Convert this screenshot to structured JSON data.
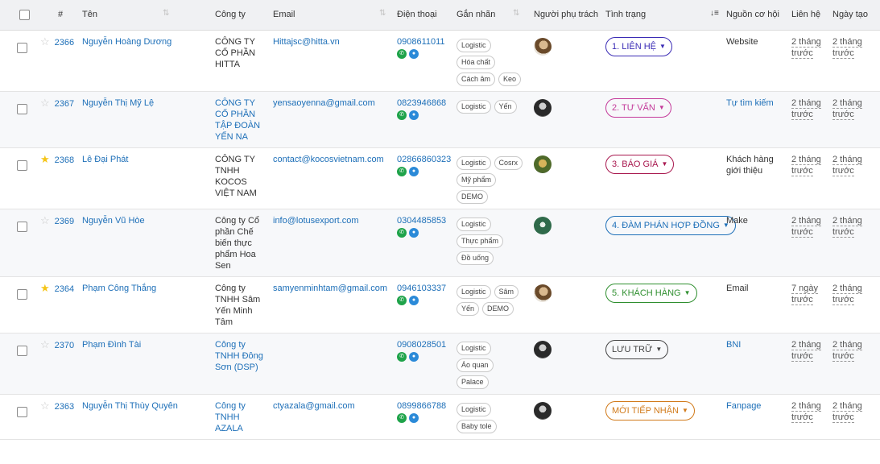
{
  "header": {
    "col_num": "#",
    "col_name": "Tên",
    "col_company": "Công ty",
    "col_email": "Email",
    "col_phone": "Điện thoại",
    "col_tags": "Gắn nhãn",
    "col_owner": "Người phụ trách",
    "col_status": "Tình trạng",
    "col_source": "Nguồn cơ hội",
    "col_contact": "Liên hệ",
    "col_created": "Ngày tạo",
    "sort_icon": "⇅",
    "sort_desc_icon": "↓≡"
  },
  "colors": {
    "status_1": "#3a2bb5",
    "status_2": "#c43a9a",
    "status_3": "#a8174e",
    "status_4": "#1d6fb8",
    "status_5": "#2f8f2f",
    "status_luu": "#444444",
    "status_moi": "#d17a1a"
  },
  "rows": [
    {
      "id": "2366",
      "starred": false,
      "name": "Nguyễn Hoàng Dương",
      "company": "CÔNG TY CỔ PHẦN HITTA",
      "company_link": false,
      "email": "Hittajsc@hitta.vn",
      "phone": "0908611011",
      "tags": [
        "Logistic",
        "Hóa chất",
        "Cách âm",
        "Keo"
      ],
      "avatar": "avatar-1",
      "status": "1. LIÊN HỆ",
      "status_color": "#3a2bb5",
      "source": "Website",
      "source_link": false,
      "contacted": "2 tháng trước",
      "created": "2 tháng trước"
    },
    {
      "id": "2367",
      "starred": false,
      "name": "Nguyễn Thị Mỹ Lệ",
      "company": "CÔNG TY CỔ PHẦN TẬP ĐOÀN YẾN NA",
      "company_link": true,
      "email": "yensaoyenna@gmail.com",
      "phone": "0823946868",
      "tags": [
        "Logistic",
        "Yến"
      ],
      "avatar": "avatar-2",
      "status": "2. TƯ VẤN",
      "status_color": "#c43a9a",
      "source": "Tự tìm kiếm",
      "source_link": true,
      "contacted": "2 tháng trước",
      "created": "2 tháng trước"
    },
    {
      "id": "2368",
      "starred": true,
      "name": "Lê Đại Phát",
      "company": "CÔNG TY TNHH KOCOS VIỆT NAM",
      "company_link": false,
      "email": "contact@kocosvietnam.com",
      "phone": "02866860323",
      "tags": [
        "Logistic",
        "Cosrx",
        "Mỹ phẩm",
        "DEMO"
      ],
      "avatar": "avatar-3",
      "status": "3. BÁO GIÁ",
      "status_color": "#a8174e",
      "source": "Khách hàng giới thiệu",
      "source_link": false,
      "contacted": "2 tháng trước",
      "created": "2 tháng trước"
    },
    {
      "id": "2369",
      "starred": false,
      "name": "Nguyễn Vũ Hòe",
      "company": "Công ty Cổ phần Chế biến thực phẩm Hoa Sen",
      "company_link": false,
      "email": "info@lotusexport.com",
      "phone": "0304485853",
      "tags": [
        "Logistic",
        "Thực phẩm",
        "Đồ uống"
      ],
      "avatar": "avatar-4",
      "status": "4. ĐÀM PHÁN HỢP ĐỒNG",
      "status_color": "#1d6fb8",
      "source": "Make",
      "source_link": false,
      "contacted": "2 tháng trước",
      "created": "2 tháng trước"
    },
    {
      "id": "2364",
      "starred": true,
      "name": "Phạm Công Thắng",
      "company": "Công ty TNHH Sâm Yến Minh Tâm",
      "company_link": false,
      "email": "samyenminhtam@gmail.com",
      "phone": "0946103337",
      "tags": [
        "Logistic",
        "Sâm",
        "Yến",
        "DEMO"
      ],
      "avatar": "avatar-1",
      "status": "5. KHÁCH HÀNG",
      "status_color": "#2f8f2f",
      "source": "Email",
      "source_link": false,
      "contacted": "7 ngày trước",
      "created": "2 tháng trước"
    },
    {
      "id": "2370",
      "starred": false,
      "name": "Phạm Đình Tài",
      "company": "Công ty TNHH Đông Sơn (DSP)",
      "company_link": true,
      "email": "",
      "phone": "0908028501",
      "tags": [
        "Logistic",
        "Áo quan",
        "Palace"
      ],
      "avatar": "avatar-2",
      "status": "LƯU TRỮ",
      "status_color": "#444444",
      "source": "BNI",
      "source_link": true,
      "contacted": "2 tháng trước",
      "created": "2 tháng trước"
    },
    {
      "id": "2363",
      "starred": false,
      "name": "Nguyễn Thị Thùy Quyên",
      "company": "Công ty TNHH AZALA",
      "company_link": true,
      "email": "ctyazala@gmail.com",
      "phone": "0899866788",
      "tags": [
        "Logistic",
        "Baby tole"
      ],
      "avatar": "avatar-2",
      "status": "MỚI TIẾP NHẬN",
      "status_color": "#d17a1a",
      "source": "Fanpage",
      "source_link": true,
      "contacted": "2 tháng trước",
      "created": "2 tháng trước"
    }
  ]
}
